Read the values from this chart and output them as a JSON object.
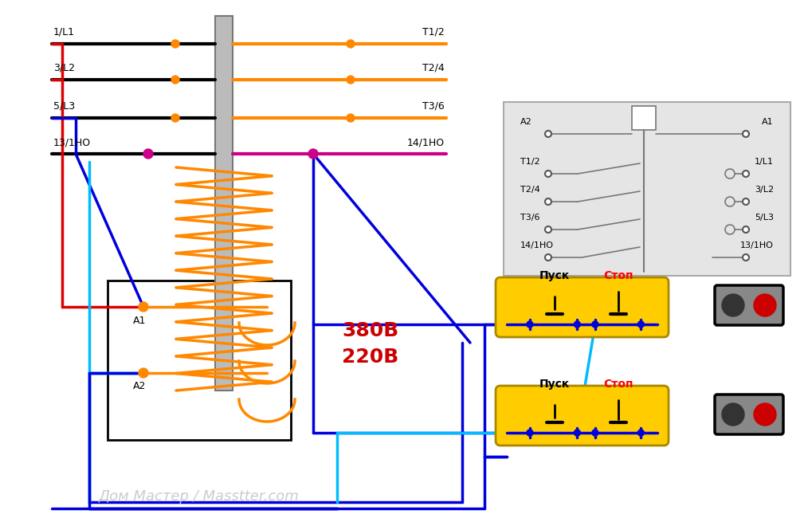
{
  "bg_color": "#ffffff",
  "watermark": "Дом Мастер / Masstter.com",
  "pusk_label": "Пуск",
  "stop_label": "Стоп",
  "voltage1": "380В",
  "voltage2": "220В",
  "colors": {
    "black": "#000000",
    "red": "#dd0000",
    "blue": "#0000dd",
    "cyan": "#00bbff",
    "orange": "#ff8800",
    "magenta": "#cc0088",
    "gray": "#888888",
    "light_gray": "#cccccc",
    "dark_gray": "#555555",
    "mid_gray": "#aaaaaa",
    "yellow": "#ffcc00",
    "dark_yellow": "#aa8800",
    "panel_gray": "#666666",
    "indicator_gray": "#888888",
    "white": "#ffffff"
  }
}
